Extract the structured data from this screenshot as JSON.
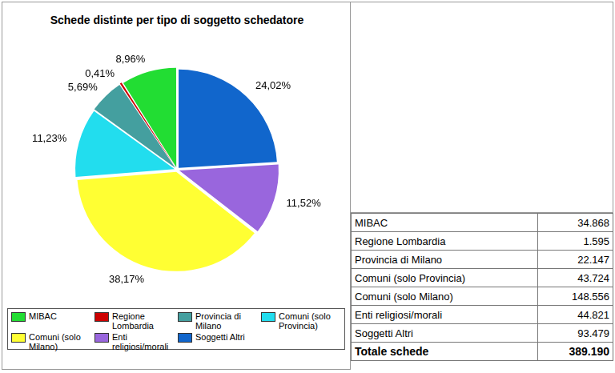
{
  "chart_data": {
    "type": "pie",
    "title": "Schede distinte per tipo di soggetto schedatore",
    "categories": [
      "MIBAC",
      "Regione Lombardia",
      "Provincia di Milano",
      "Comuni (solo Provincia)",
      "Comuni (solo Milano)",
      "Enti religiosi/morali",
      "Soggetti Altri"
    ],
    "values": [
      8.96,
      0.41,
      5.69,
      11.23,
      38.17,
      11.52,
      24.02
    ],
    "value_labels": [
      "8,96%",
      "0,41%",
      "5,69%",
      "11,23%",
      "38,17%",
      "11,52%",
      "24,02%"
    ],
    "colors": [
      "#22dd33",
      "#cc0000",
      "#449f9f",
      "#22ddee",
      "#ffff33",
      "#9966dd",
      "#1166cc"
    ],
    "data_labels": true,
    "legend": "bottom"
  },
  "table": {
    "rows": [
      [
        "MIBAC",
        "34.868"
      ],
      [
        "Regione Lombardia",
        "1.595"
      ],
      [
        "Provincia di Milano",
        "22.147"
      ],
      [
        "Comuni (solo Provincia)",
        "43.724"
      ],
      [
        "Comuni (solo Milano)",
        "148.556"
      ],
      [
        "Enti religiosi/morali",
        "44.821"
      ],
      [
        "Soggetti Altri",
        "93.479"
      ]
    ],
    "total": [
      "Totale schede",
      "389.190"
    ]
  }
}
